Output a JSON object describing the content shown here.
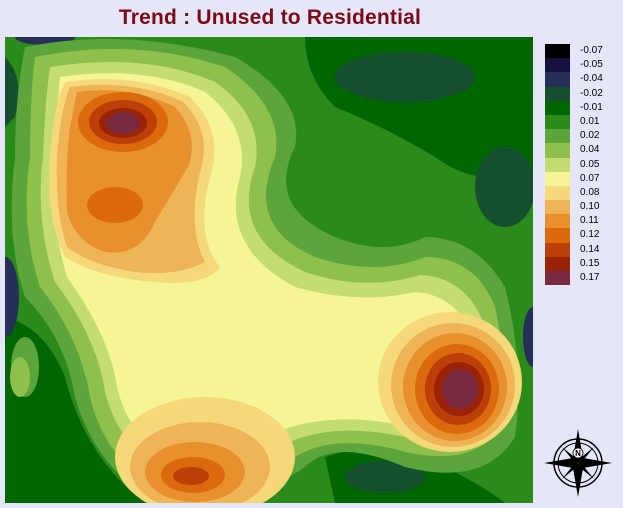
{
  "map": {
    "title": "Trend : Unused to Residential",
    "north_label": "N"
  },
  "legend": {
    "items": [
      {
        "label": "-0.07",
        "color": "#000000"
      },
      {
        "label": "-0.05",
        "color": "#161040"
      },
      {
        "label": "-0.04",
        "color": "#262f58"
      },
      {
        "label": "-0.02",
        "color": "#154f30"
      },
      {
        "label": "-0.01",
        "color": "#006700"
      },
      {
        "label": "0.01",
        "color": "#2a8a1a"
      },
      {
        "label": "0.02",
        "color": "#5ca53a"
      },
      {
        "label": "0.04",
        "color": "#8fc04b"
      },
      {
        "label": "0.05",
        "color": "#c4dd72"
      },
      {
        "label": "0.07",
        "color": "#f6f596"
      },
      {
        "label": "0.08",
        "color": "#f5d87a"
      },
      {
        "label": "0.10",
        "color": "#efb456"
      },
      {
        "label": "0.11",
        "color": "#e8902e"
      },
      {
        "label": "0.12",
        "color": "#dc6a0c"
      },
      {
        "label": "0.14",
        "color": "#bc3f08"
      },
      {
        "label": "0.15",
        "color": "#9a2306"
      },
      {
        "label": "0.17",
        "color": "#7a2a3e"
      }
    ]
  }
}
